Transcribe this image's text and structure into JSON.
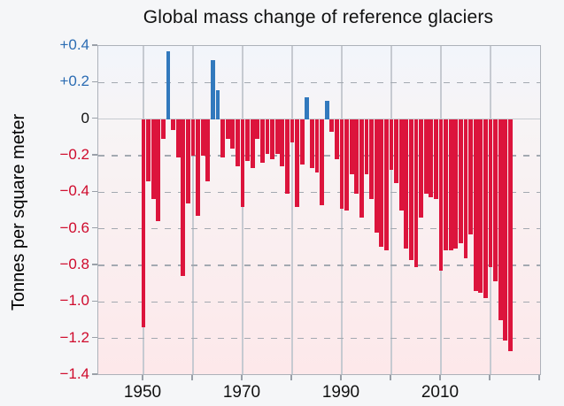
{
  "title": "Global mass change of reference glaciers",
  "y_axis": {
    "label": "Tonnes per square meter",
    "ticks": [
      {
        "label": "+0.4",
        "value": 0.4,
        "role": "positive"
      },
      {
        "label": "+0.2",
        "value": 0.2,
        "role": "positive"
      },
      {
        "label": "0",
        "value": 0.0,
        "role": "zero"
      },
      {
        "label": "−0.2",
        "value": -0.2,
        "role": "negative"
      },
      {
        "label": "−0.4",
        "value": -0.4,
        "role": "negative"
      },
      {
        "label": "−0.6",
        "value": -0.6,
        "role": "negative"
      },
      {
        "label": "−0.8",
        "value": -0.8,
        "role": "negative"
      },
      {
        "label": "−1.0",
        "value": -1.0,
        "role": "negative"
      },
      {
        "label": "−1.2",
        "value": -1.2,
        "role": "negative"
      },
      {
        "label": "−1.4",
        "value": -1.4,
        "role": "negative"
      }
    ]
  },
  "x_axis": {
    "labeled_ticks": [
      {
        "label": "1950",
        "year": 1950
      },
      {
        "label": "1970",
        "year": 1970
      },
      {
        "label": "1990",
        "year": 1990
      },
      {
        "label": "2010",
        "year": 2010
      }
    ],
    "decade_gridlines": [
      1950,
      1960,
      1970,
      1980,
      1990,
      2000,
      2010,
      2020
    ],
    "tick_years": [
      1950,
      1960,
      1970,
      1980,
      1990,
      2000,
      2010,
      2020,
      2030
    ]
  },
  "colors": {
    "bar_negative": "#dc143c",
    "bar_positive": "#3279bd",
    "label_negative": "#cf0a2c",
    "label_positive": "#2b6cb3",
    "label_zero": "#111111",
    "title_text": "#111111",
    "grid_solid": "#c6cad1",
    "grid_dash": "#a3a9b1",
    "plot_border": "#adb2ba",
    "tick_mark": "#9aa0a8",
    "page_bg": "#f5f6f8",
    "plot_bg_top": "#f2f5fb",
    "plot_bg_mid": "#f7f4f5",
    "plot_bg_bottom": "#fde8ea"
  },
  "chart_data": {
    "type": "bar",
    "title": "Global mass change of reference glaciers",
    "xlabel": "",
    "ylabel": "Tonnes per square meter",
    "ylim": [
      -1.4,
      0.4
    ],
    "x_axis_range": [
      1941,
      2030
    ],
    "grid": "vertical solid lines each decade; horizontal dashed lines every 0.2; solid zero line",
    "legend": "none",
    "positive_color": "#3279bd",
    "negative_color": "#dc143c",
    "start_year": 1950,
    "end_year": 2024,
    "years": [
      1950,
      1951,
      1952,
      1953,
      1954,
      1955,
      1956,
      1957,
      1958,
      1959,
      1960,
      1961,
      1962,
      1963,
      1964,
      1965,
      1966,
      1967,
      1968,
      1969,
      1970,
      1971,
      1972,
      1973,
      1974,
      1975,
      1976,
      1977,
      1978,
      1979,
      1980,
      1981,
      1982,
      1983,
      1984,
      1985,
      1986,
      1987,
      1988,
      1989,
      1990,
      1991,
      1992,
      1993,
      1994,
      1995,
      1996,
      1997,
      1998,
      1999,
      2000,
      2001,
      2002,
      2003,
      2004,
      2005,
      2006,
      2007,
      2008,
      2009,
      2010,
      2011,
      2012,
      2013,
      2014,
      2015,
      2016,
      2017,
      2018,
      2019,
      2020,
      2021,
      2022,
      2023,
      2024
    ],
    "values": [
      -1.14,
      -0.34,
      -0.44,
      -0.56,
      -0.11,
      0.37,
      -0.06,
      -0.21,
      -0.86,
      -0.46,
      -0.2,
      -0.53,
      -0.2,
      -0.34,
      0.32,
      0.16,
      -0.21,
      -0.11,
      -0.16,
      -0.26,
      -0.48,
      -0.23,
      -0.27,
      -0.11,
      -0.24,
      -0.19,
      -0.22,
      -0.19,
      -0.26,
      -0.41,
      -0.13,
      -0.48,
      -0.25,
      0.12,
      -0.27,
      -0.29,
      -0.47,
      0.1,
      -0.07,
      -0.22,
      -0.49,
      -0.5,
      -0.3,
      -0.41,
      -0.54,
      -0.3,
      -0.44,
      -0.62,
      -0.7,
      -0.72,
      -0.28,
      -0.35,
      -0.5,
      -0.71,
      -0.77,
      -0.81,
      -0.54,
      -0.41,
      -0.43,
      -0.44,
      -0.83,
      -0.72,
      -0.72,
      -0.71,
      -0.68,
      -0.76,
      -0.63,
      -0.94,
      -0.95,
      -0.98,
      -0.81,
      -0.89,
      -1.1,
      -1.21,
      -1.27
    ]
  }
}
